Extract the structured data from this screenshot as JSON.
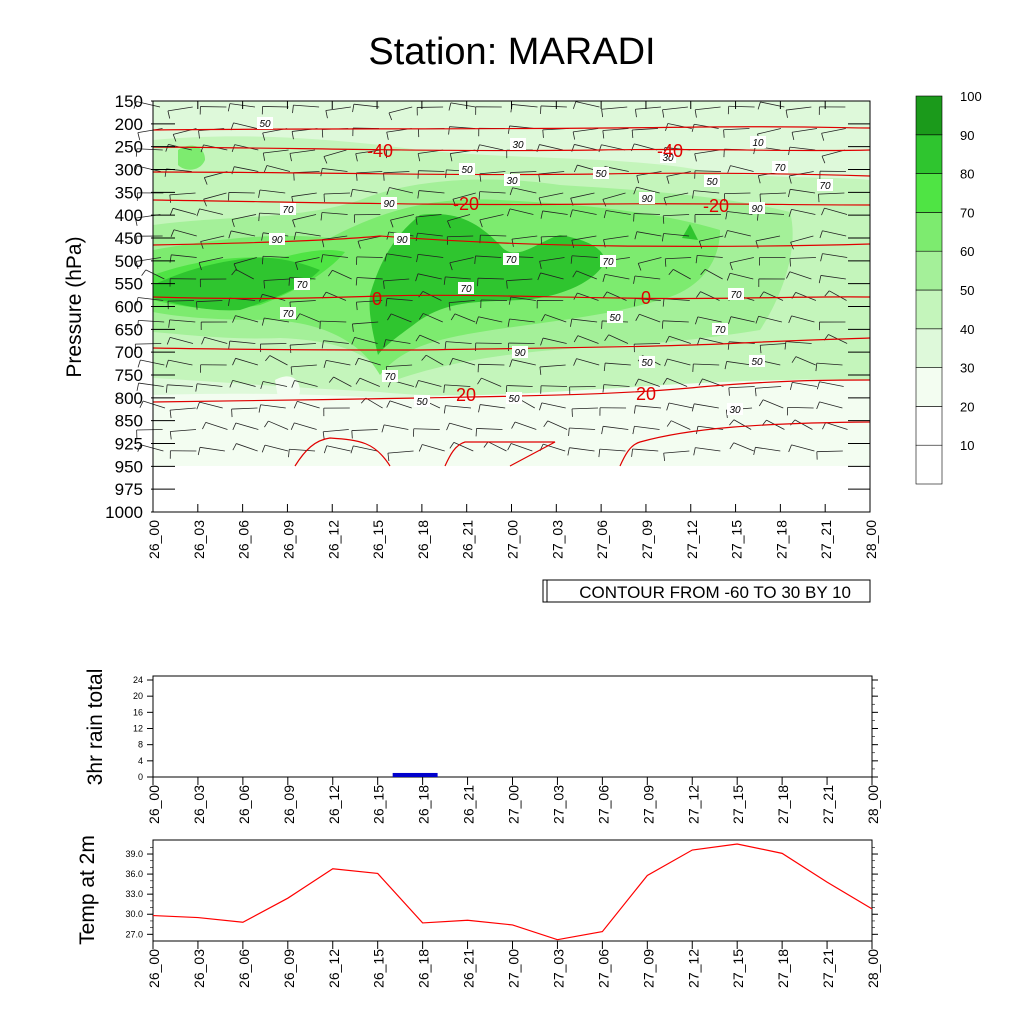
{
  "colors": {
    "temp_contour": "#e00000",
    "rain_bar": "#0000cc",
    "temp_line": "#ff0000",
    "axis": "#000000",
    "humidity_levels": [
      "#ffffff",
      "#ffffff",
      "#f3fdf1",
      "#def9da",
      "#c4f5bb",
      "#a4f099",
      "#7deb6f",
      "#4fe444",
      "#2fc52f",
      "#1b9a1b"
    ]
  },
  "chart_data": [
    {
      "type": "heatmap",
      "title": "Station: MARADI",
      "xlabel": "",
      "ylabel": "Pressure (hPa)",
      "x_ticks": [
        "26_00",
        "26_03",
        "26_06",
        "26_09",
        "26_12",
        "26_15",
        "26_18",
        "26_21",
        "27_00",
        "27_03",
        "27_06",
        "27_09",
        "27_12",
        "27_15",
        "27_18",
        "27_21",
        "28_00"
      ],
      "y_ticks": [
        150,
        200,
        250,
        300,
        350,
        400,
        450,
        500,
        550,
        600,
        650,
        700,
        750,
        800,
        850,
        925,
        950,
        975,
        1000
      ],
      "colorbar": {
        "labels": [
          10,
          20,
          30,
          40,
          50,
          60,
          70,
          80,
          90,
          100
        ],
        "placement": "right"
      },
      "info_box": "CONTOUR FROM -60 TO 30 BY 10",
      "humidity_contour_labels": [
        "50",
        "30",
        "10",
        "30",
        "50",
        "50",
        "30",
        "50",
        "70",
        "70",
        "70",
        "90",
        "90",
        "90",
        "90",
        "90",
        "70",
        "70",
        "70",
        "70",
        "70",
        "70",
        "50",
        "70",
        "90",
        "50",
        "30",
        "50",
        "70",
        "50",
        "50"
      ],
      "temperature_contours": [
        {
          "label": "-40",
          "x": "26_15",
          "p": 250
        },
        {
          "label": "-40",
          "x": "27_09",
          "p": 250
        },
        {
          "label": "-20",
          "x": "26_21",
          "p": 375
        },
        {
          "label": "-20",
          "x": "27_12",
          "p": 375
        },
        {
          "label": "0",
          "x": "26_15",
          "p": 575
        },
        {
          "label": "0",
          "x": "27_09",
          "p": 575
        },
        {
          "label": "20",
          "x": "26_21",
          "p": 800
        },
        {
          "label": "20",
          "x": "27_09",
          "p": 800
        }
      ]
    },
    {
      "type": "bar",
      "ylabel": "3hr rain total",
      "xlabel": "",
      "categories": [
        "26_00",
        "26_03",
        "26_06",
        "26_09",
        "26_12",
        "26_15",
        "26_18",
        "26_21",
        "27_00",
        "27_03",
        "27_06",
        "27_09",
        "27_12",
        "27_15",
        "27_18",
        "27_21",
        "28_00"
      ],
      "y_ticks": [
        0,
        4,
        8,
        12,
        16,
        20,
        24
      ],
      "ylim": [
        0,
        24
      ],
      "bars": [
        {
          "x_start": "26_16",
          "x_end": "26_19",
          "value": 1
        }
      ]
    },
    {
      "type": "line",
      "ylabel": "Temp at 2m",
      "xlabel": "",
      "x": [
        "26_00",
        "26_03",
        "26_06",
        "26_09",
        "26_12",
        "26_15",
        "26_18",
        "26_21",
        "27_00",
        "27_03",
        "27_06",
        "27_09",
        "27_12",
        "27_15",
        "27_18",
        "27_21",
        "28_00"
      ],
      "y_ticks": [
        "27.0",
        "30.0",
        "33.0",
        "36.0",
        "39.0"
      ],
      "ylim": [
        26.0,
        40.5
      ],
      "values": [
        29.8,
        29.5,
        28.8,
        32.4,
        36.8,
        36.1,
        28.7,
        29.1,
        28.4,
        26.2,
        27.4,
        35.8,
        39.6,
        40.5,
        39.1,
        34.8,
        30.8
      ]
    }
  ]
}
